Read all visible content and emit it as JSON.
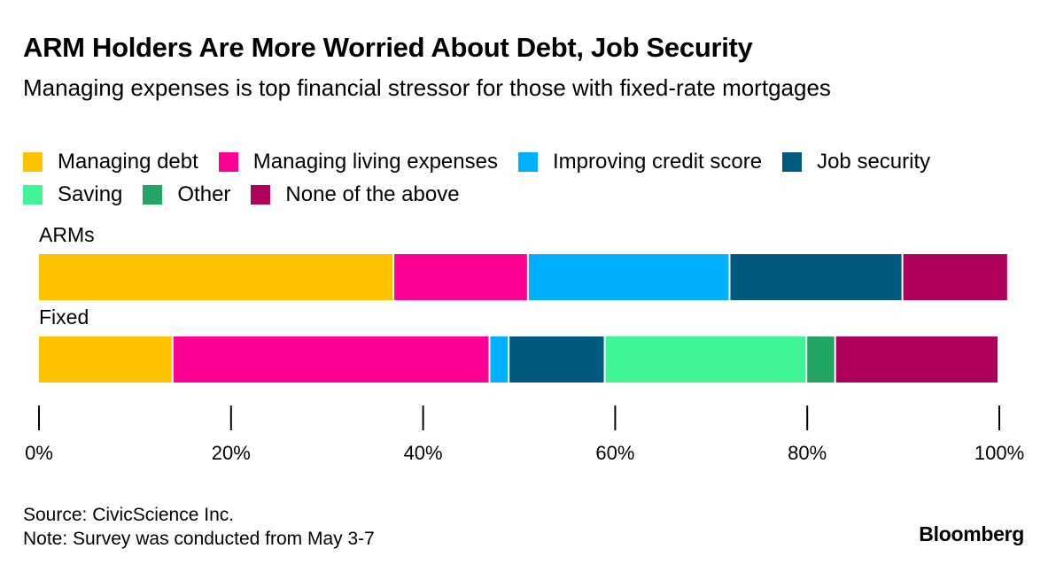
{
  "header": {
    "title": "ARM Holders Are More Worried About Debt, Job Security",
    "subtitle": "Managing expenses is top financial stressor for those with fixed-rate mortgages"
  },
  "chart_data": {
    "type": "bar",
    "orientation": "horizontal",
    "stacked": true,
    "title": "ARM Holders Are More Worried About Debt, Job Security",
    "subtitle": "Managing expenses is top financial stressor for those with fixed-rate mortgages",
    "categories": [
      "ARMs",
      "Fixed"
    ],
    "series": [
      {
        "name": "Managing debt",
        "color": "#ffc200",
        "values": [
          37,
          14
        ]
      },
      {
        "name": "Managing living expenses",
        "color": "#ff0094",
        "values": [
          14,
          33
        ]
      },
      {
        "name": "Improving credit score",
        "color": "#00b0ff",
        "values": [
          21,
          2
        ]
      },
      {
        "name": "Job security",
        "color": "#005a80",
        "values": [
          18,
          10
        ]
      },
      {
        "name": "Saving",
        "color": "#40f595",
        "values": [
          0,
          21
        ]
      },
      {
        "name": "Other",
        "color": "#23a566",
        "values": [
          0,
          3
        ]
      },
      {
        "name": "None of the above",
        "color": "#b0005f",
        "values": [
          11,
          17
        ]
      }
    ],
    "xlim": [
      0,
      100
    ],
    "xticks": [
      "0%",
      "20%",
      "40%",
      "60%",
      "80%",
      "100%"
    ],
    "xlabel": "",
    "ylabel": "",
    "legend": "top"
  },
  "footer": {
    "source": "Source: CivicScience Inc.",
    "note": "Note: Survey was conducted from May 3-7",
    "brand": "Bloomberg"
  }
}
